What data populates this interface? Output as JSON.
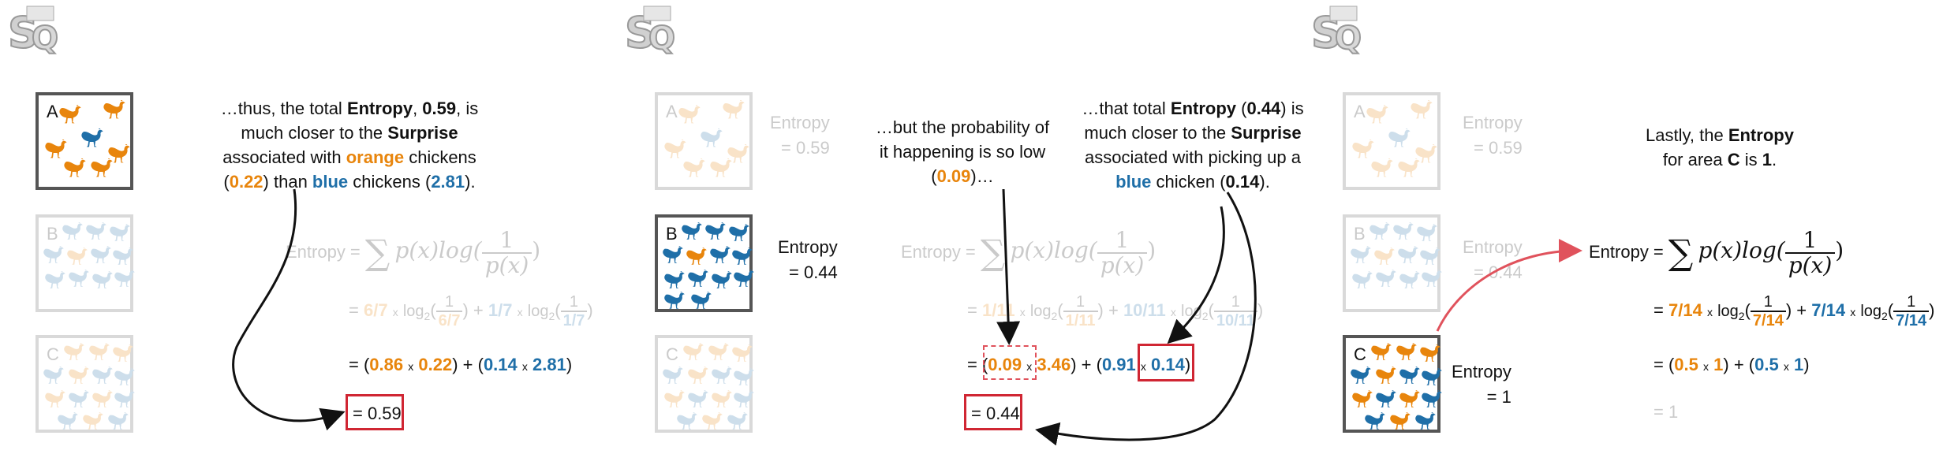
{
  "logo_text": "StatQuest",
  "panel1": {
    "box_a": "A",
    "box_b": "B",
    "box_c": "C",
    "caption": [
      "…thus, the total ",
      "Entropy",
      ", ",
      "0.59",
      ", is",
      "much closer to the ",
      "Surprise",
      "associated with ",
      "orange",
      " chickens",
      "(",
      "0.22",
      ") than ",
      "blue",
      " chickens (",
      "2.81",
      ")."
    ],
    "eq_label": "Entropy =",
    "eq_sum": "∑",
    "eq_px": "p(x)log(",
    "eq_one": "1",
    "eq_den": "p(x)",
    "eq_close": ")",
    "line2": {
      "eq": "=",
      "p1": "6/7",
      "x1": "x",
      "log1": "log",
      "sub1": "2",
      "num1": "1",
      "den1": "6/7",
      "plus": "+",
      "p2": "1/7",
      "x2": "x",
      "log2": "log",
      "sub2": "2",
      "num2": "1",
      "den2": "1/7"
    },
    "line3": {
      "start": "= (",
      "a": "0.86",
      "x": "x",
      "b": "0.22",
      "mid": ") + (",
      "c": "0.14",
      "d": "2.81",
      "end": ")"
    },
    "result": "= 0.59"
  },
  "panel2": {
    "box_a": "A",
    "box_b": "B",
    "box_c": "C",
    "side_a": [
      "Entropy",
      "= 0.59"
    ],
    "side_b": [
      "Entropy",
      "= 0.44"
    ],
    "caption_left": [
      "…but the probability of",
      "it happening is so low",
      "(",
      "0.09",
      ")…"
    ],
    "caption_right": [
      "…that total ",
      "Entropy",
      " (",
      "0.44",
      ") is",
      "much closer to the ",
      "Surprise",
      "associated with picking up a",
      "blue",
      " chicken (",
      "0.14",
      ")."
    ],
    "eq_label": "Entropy =",
    "eq_sum": "∑",
    "eq_px": "p(x)log(",
    "eq_one": "1",
    "eq_den": "p(x)",
    "eq_close": ")",
    "line2": {
      "eq": "=",
      "p1": "1/11",
      "x1": "x",
      "log1": "log",
      "sub1": "2",
      "num1": "1",
      "den1": "1/11",
      "plus": "+",
      "p2": "10/11",
      "x2": "x",
      "log2": "log",
      "sub2": "2",
      "num2": "1",
      "den2": "10/11"
    },
    "line3": {
      "start": "= (",
      "a": "0.09",
      "x": "x",
      "b": "3.46",
      "mid": ") + (",
      "c": "0.91",
      "d": "0.14",
      "end": ")"
    },
    "result": "= 0.44"
  },
  "panel3": {
    "box_a": "A",
    "box_b": "B",
    "box_c": "C",
    "side_a": [
      "Entropy",
      "= 0.59"
    ],
    "side_b": [
      "Entropy",
      "= 0.44"
    ],
    "side_c": [
      "Entropy",
      "= 1"
    ],
    "caption": [
      "Lastly, the ",
      "Entropy",
      "for area ",
      "C",
      " is ",
      "1",
      "."
    ],
    "eq_label": "Entropy =",
    "eq_sum": "∑",
    "eq_px": "p(x)log(",
    "eq_one": "1",
    "eq_den": "p(x)",
    "eq_close": ")",
    "line2": {
      "eq": "=",
      "p1": "7/14",
      "x1": "x",
      "log1": "log",
      "sub1": "2",
      "num1": "1",
      "den1": "7/14",
      "plus": "+",
      "p2": "7/14",
      "x2": "x",
      "log2": "log",
      "sub2": "2",
      "num2": "1",
      "den2": "7/14"
    },
    "line3": {
      "start": "= (",
      "a": "0.5",
      "x": "x",
      "b": "1",
      "mid": ") + (",
      "c": "0.5",
      "d": "1",
      "end": ")"
    },
    "result": "= 1"
  },
  "colors": {
    "orange": "#E8850C",
    "blue": "#1F6FA8",
    "red": "#D02633",
    "arrow_red": "#E0525C"
  }
}
